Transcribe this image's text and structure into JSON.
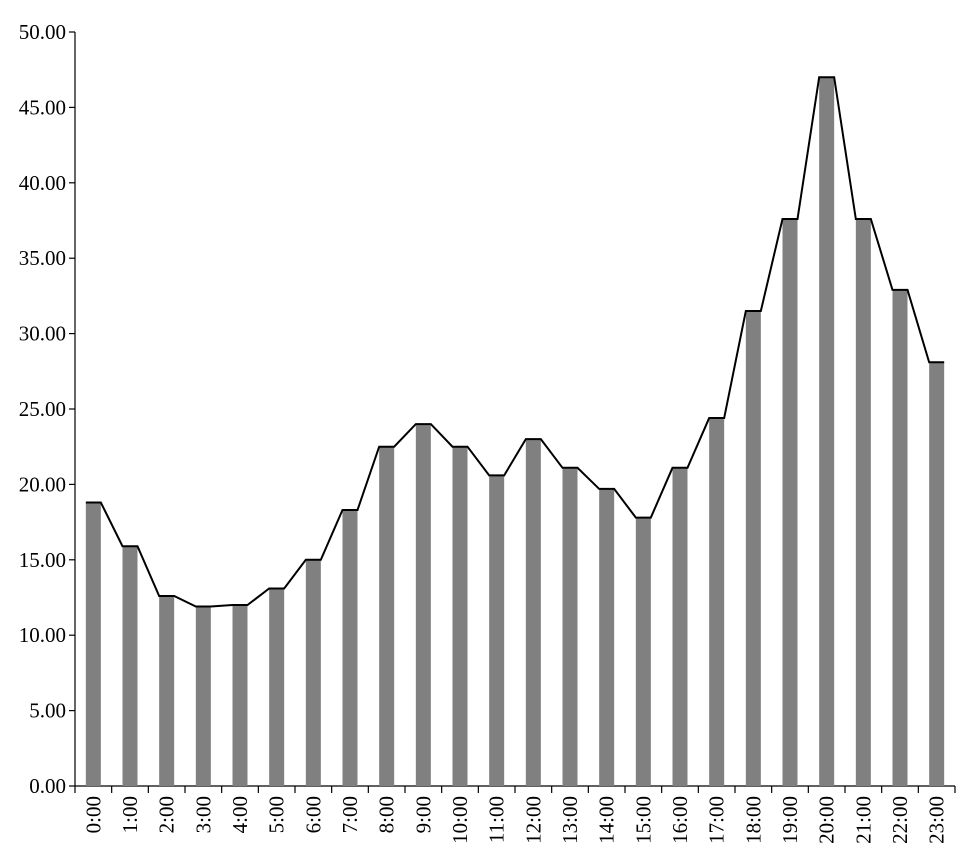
{
  "chart_data": {
    "type": "bar",
    "title": "",
    "xlabel": "",
    "ylabel": "",
    "categories": [
      "0:00",
      "1:00",
      "2:00",
      "3:00",
      "4:00",
      "5:00",
      "6:00",
      "7:00",
      "8:00",
      "9:00",
      "10:00",
      "11:00",
      "12:00",
      "13:00",
      "14:00",
      "15:00",
      "16:00",
      "17:00",
      "18:00",
      "19:00",
      "20:00",
      "21:00",
      "22:00",
      "23:00"
    ],
    "values": [
      18.8,
      15.9,
      12.6,
      11.9,
      12.0,
      13.1,
      15.0,
      18.3,
      22.5,
      24.0,
      22.5,
      20.6,
      23.0,
      21.1,
      19.7,
      17.8,
      21.1,
      24.4,
      31.5,
      37.6,
      47.0,
      37.6,
      32.9,
      28.1
    ],
    "ylim": [
      0,
      50
    ],
    "y_ticks": [
      "0.00",
      "5.00",
      "10.00",
      "15.00",
      "20.00",
      "25.00",
      "30.00",
      "35.00",
      "40.00",
      "45.00",
      "50.00"
    ],
    "grid": false,
    "overlay_line": true,
    "bar_color": "#808080",
    "line_color": "#000000"
  }
}
